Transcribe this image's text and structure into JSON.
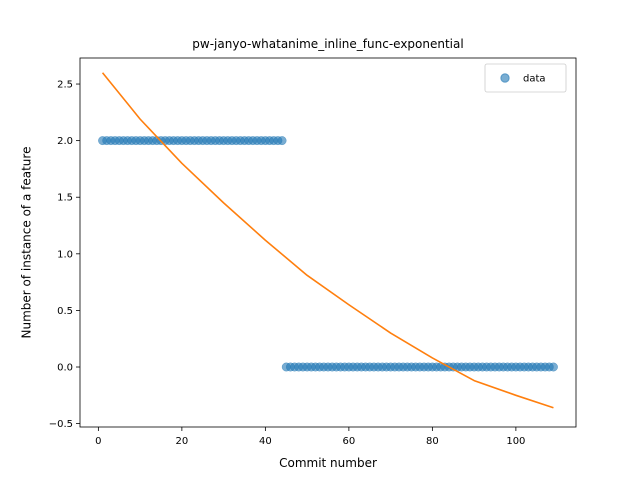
{
  "chart_data": {
    "type": "scatter",
    "title": "pw-janyo-whatanime_inline_func-exponential",
    "xlabel": "Commit number",
    "ylabel": "Number of instance of a feature",
    "xlim": [
      -4.4,
      114.4
    ],
    "ylim": [
      -0.53,
      2.73
    ],
    "xticks": [
      0,
      20,
      40,
      60,
      80,
      100
    ],
    "xtick_labels": [
      "0",
      "20",
      "40",
      "60",
      "80",
      "100"
    ],
    "yticks": [
      -0.5,
      0.0,
      0.5,
      1.0,
      1.5,
      2.0,
      2.5
    ],
    "ytick_labels": [
      "−0.5",
      "0.0",
      "0.5",
      "1.0",
      "1.5",
      "2.0",
      "2.5"
    ],
    "grid": false,
    "legend_position": "top-right",
    "series": [
      {
        "name": "data",
        "kind": "scatter",
        "color": "#1f77b4",
        "segments": [
          {
            "x_from": 1,
            "x_to": 44,
            "y": 2
          },
          {
            "x_from": 45,
            "x_to": 109,
            "y": 0
          }
        ]
      },
      {
        "kind": "line",
        "color": "#ff7f0e",
        "x": [
          1,
          10,
          20,
          30,
          40,
          50,
          60,
          70,
          80,
          90,
          100,
          109
        ],
        "y": [
          2.6,
          2.19,
          1.8,
          1.45,
          1.12,
          0.81,
          0.55,
          0.3,
          0.08,
          -0.12,
          -0.25,
          -0.36
        ]
      }
    ]
  }
}
